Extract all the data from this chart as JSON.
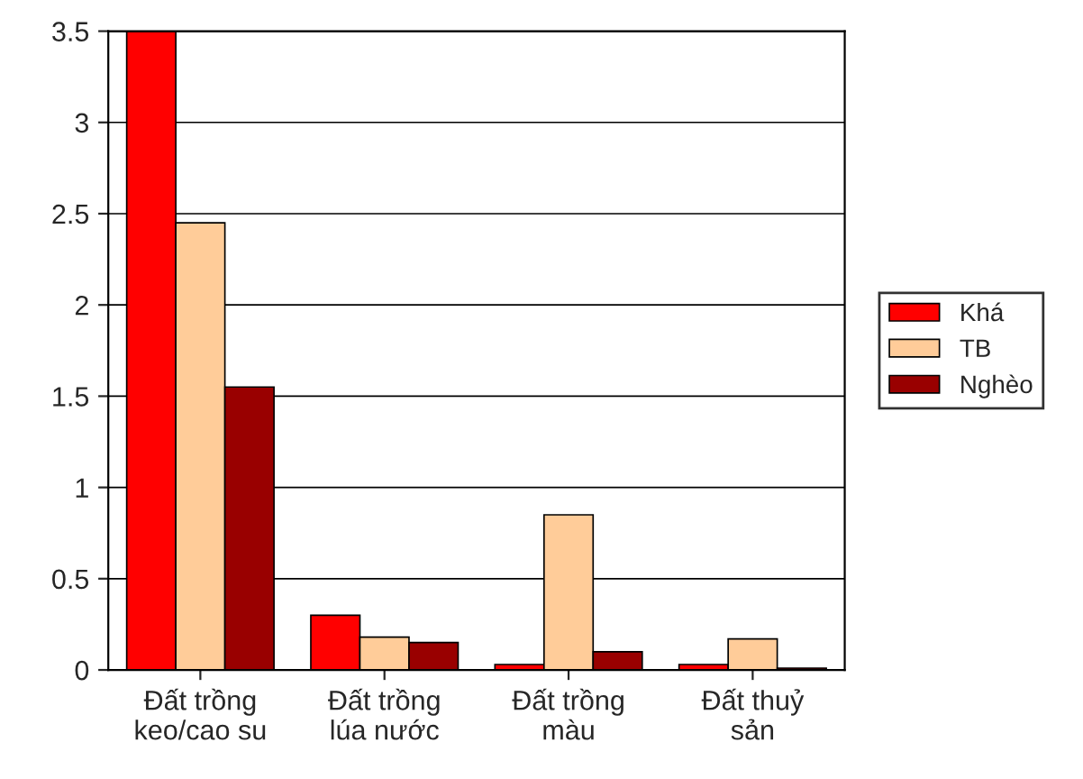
{
  "chart_data": {
    "type": "bar",
    "categories": [
      "Đất trồng\nkeo/cao su",
      "Đất trồng\nlúa nước",
      "Đất trồng\nmàu",
      "Đất thuỷ\nsản"
    ],
    "series": [
      {
        "name": "Khá",
        "color": "#ff0000",
        "values": [
          3.5,
          0.3,
          0.03,
          0.03
        ]
      },
      {
        "name": "TB",
        "color": "#ffcc99",
        "values": [
          2.45,
          0.18,
          0.85,
          0.17
        ]
      },
      {
        "name": "Nghèo",
        "color": "#990000",
        "values": [
          1.55,
          0.15,
          0.1,
          0.01
        ]
      }
    ],
    "ylim": [
      0,
      3.5
    ],
    "yticks": [
      0,
      0.5,
      1,
      1.5,
      2,
      2.5,
      3,
      3.5
    ],
    "grid": "y",
    "legend": "right"
  }
}
